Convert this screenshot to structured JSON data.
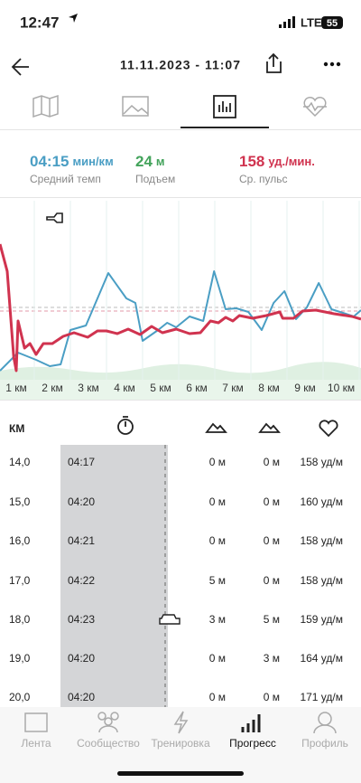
{
  "status_bar": {
    "time": "12:47",
    "network": "LTE",
    "battery": "55"
  },
  "header": {
    "title": "11.11.2023 - 11:07"
  },
  "summary": [
    {
      "value": "04:15",
      "unit": "мин/км",
      "label": "Средний темп"
    },
    {
      "value": "24",
      "unit": "м",
      "label": "Подъем"
    },
    {
      "value": "158",
      "unit": "уд./мин.",
      "label": "Ср. пульс"
    }
  ],
  "chart_data": {
    "type": "line",
    "xlim": [
      0.55,
      10.55
    ],
    "ylim": [
      0,
      198
    ],
    "xticks": [
      {
        "value": 1,
        "label": "1 км"
      },
      {
        "value": 2,
        "label": "2 км"
      },
      {
        "value": 3,
        "label": "3 км"
      },
      {
        "value": 4,
        "label": "4 км"
      },
      {
        "value": 5,
        "label": "5 км"
      },
      {
        "value": 6,
        "label": "6 км"
      },
      {
        "value": 7,
        "label": "7 км"
      },
      {
        "value": 8,
        "label": "8 км"
      },
      {
        "value": 9,
        "label": "9 км"
      },
      {
        "value": 10,
        "label": "10 км"
      }
    ],
    "series": [
      {
        "color": "#4a9ec4",
        "x": [
          0.55,
          1.05,
          1.55,
          1.93,
          2.23,
          2.5,
          2.93,
          3.55,
          4.05,
          4.3,
          4.5,
          4.93,
          5.18,
          5.43,
          5.8,
          6.18,
          6.48,
          6.8,
          7.1,
          7.43,
          7.8,
          8.13,
          8.43,
          8.75,
          9.05,
          9.38,
          9.73,
          10.05,
          10.35,
          10.55
        ],
        "values": [
          10,
          30,
          22,
          15,
          17,
          55,
          60,
          118,
          90,
          85,
          43,
          55,
          63,
          58,
          70,
          65,
          120,
          78,
          79,
          75,
          55,
          85,
          98,
          67,
          80,
          107,
          78,
          74,
          70,
          77
        ]
      },
      {
        "color": "#d0334f",
        "x": [
          0.55,
          0.75,
          0.93,
          1.0,
          1.05,
          1.23,
          1.38,
          1.55,
          1.75,
          2.0,
          2.3,
          2.6,
          2.98,
          3.25,
          3.5,
          3.8,
          4.1,
          4.43,
          4.75,
          5.05,
          5.43,
          5.8,
          6.1,
          6.38,
          6.6,
          6.8,
          7.0,
          7.18,
          7.55,
          7.93,
          8.3,
          8.38,
          8.68,
          8.93,
          9.3,
          9.8,
          10.3,
          10.55
        ],
        "values": [
          150,
          120,
          25,
          10,
          65,
          35,
          40,
          28,
          40,
          40,
          48,
          52,
          47,
          54,
          54,
          51,
          56,
          50,
          59,
          52,
          56,
          51,
          52,
          65,
          63,
          69,
          65,
          71,
          68,
          71,
          75,
          68,
          68,
          76,
          77,
          73,
          70,
          67
        ]
      }
    ]
  },
  "table": {
    "columns": [
      "КМ"
    ],
    "rows": [
      [
        "14,0",
        "04:17",
        "0 м",
        "0 м",
        "158 уд/м"
      ],
      [
        "15,0",
        "04:20",
        "0 м",
        "0 м",
        "160 уд/м"
      ],
      [
        "16,0",
        "04:21",
        "0 м",
        "0 м",
        "158 уд/м"
      ],
      [
        "17,0",
        "04:22",
        "5 м",
        "0 м",
        "158 уд/м"
      ],
      [
        "18,0",
        "04:23",
        "3 м",
        "5 м",
        "159 уд/м"
      ],
      [
        "19,0",
        "04:20",
        "0 м",
        "3 м",
        "164 уд/м"
      ],
      [
        "20,0",
        "04:20",
        "0 м",
        "0 м",
        "171 уд/м"
      ]
    ]
  },
  "tab_bar": [
    "Лента",
    "Сообщество",
    "Тренировка",
    "Прогресс",
    "Профиль"
  ]
}
